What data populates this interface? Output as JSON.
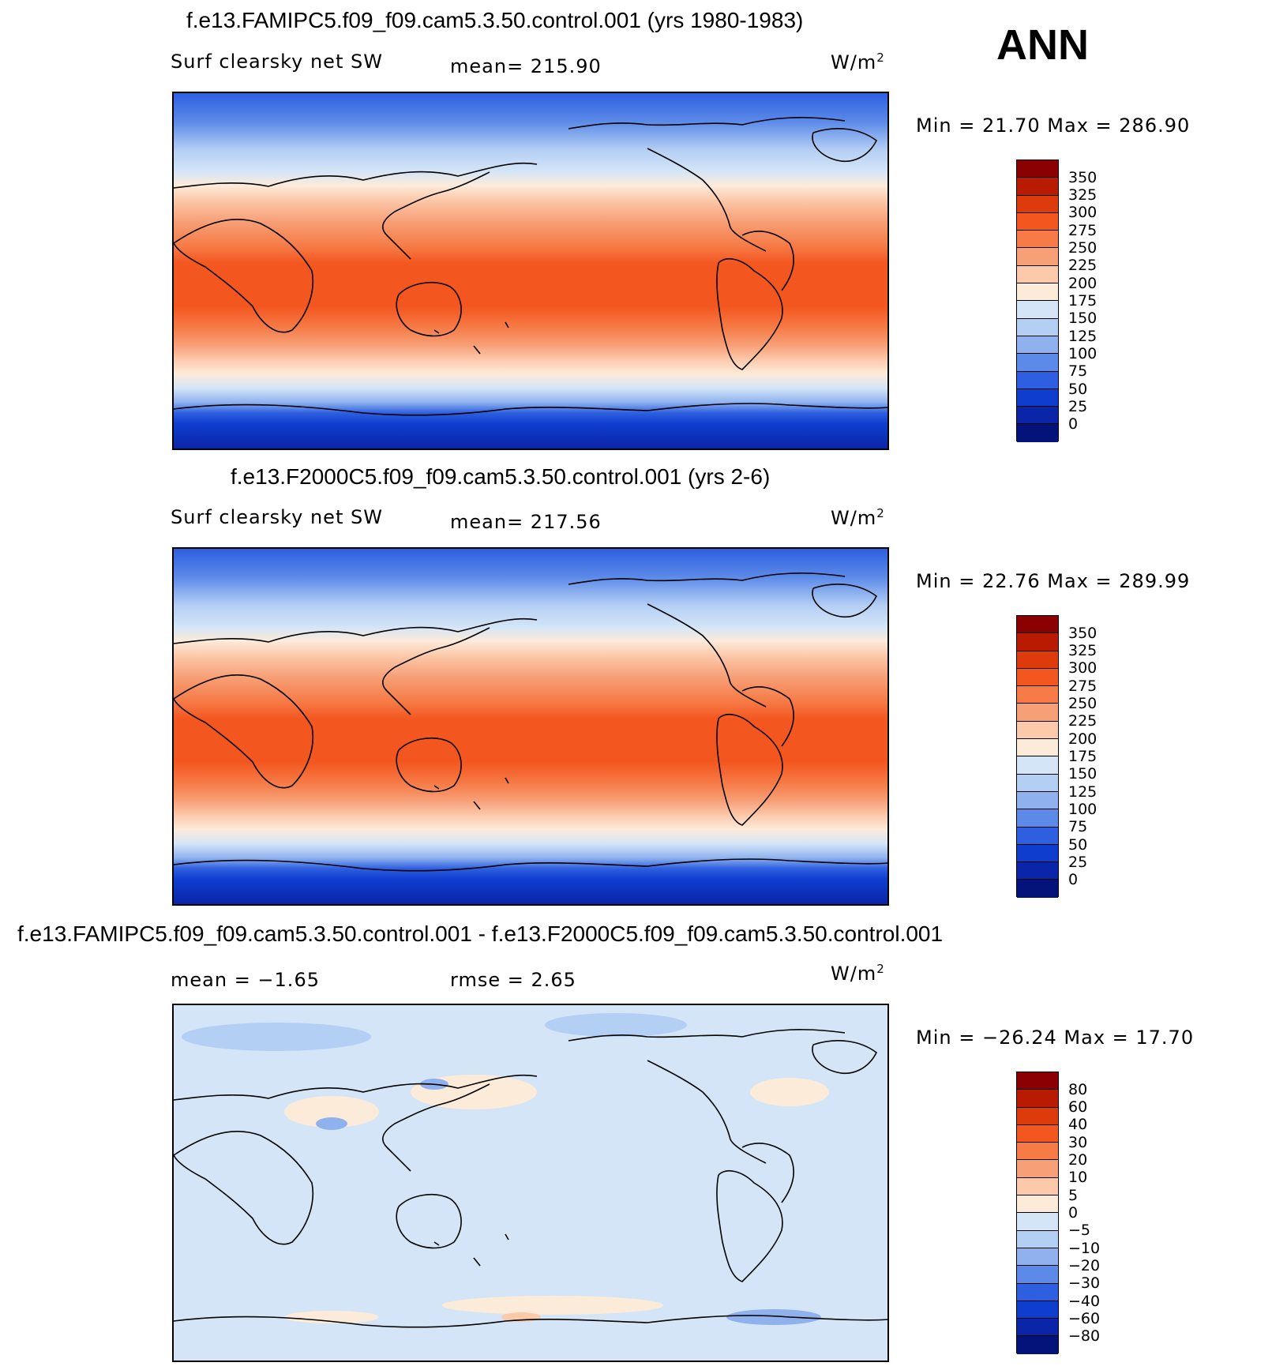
{
  "season": "ANN",
  "panels": [
    {
      "title": "f.e13.FAMIPC5.f09_f09.cam5.3.50.control.001 (yrs 1980-1983)",
      "left_label": "Surf clearsky net SW",
      "center_label": "mean= 215.90",
      "units": "W/m",
      "units_exp": "2",
      "minmax": "Min =   21.70 Max = 286.90"
    },
    {
      "title": "f.e13.F2000C5.f09_f09.cam5.3.50.control.001 (yrs 2-6)",
      "left_label": "Surf clearsky net SW",
      "center_label": "mean= 217.56",
      "units": "W/m",
      "units_exp": "2",
      "minmax": "Min =   22.76 Max = 289.99"
    },
    {
      "title": "f.e13.FAMIPC5.f09_f09.cam5.3.50.control.001 - f.e13.F2000C5.f09_f09.cam5.3.50.control.001",
      "left_label": "mean =   −1.65",
      "center_label": "rmse =    2.65",
      "units": "W/m",
      "units_exp": "2",
      "minmax": "Min = −26.24 Max =   17.70"
    }
  ],
  "colorbars": {
    "abs": {
      "labels": [
        "350",
        "325",
        "300",
        "275",
        "250",
        "225",
        "200",
        "175",
        "150",
        "125",
        "100",
        "75",
        "50",
        "25",
        "0"
      ],
      "colors": [
        "#8b0000",
        "#b81b00",
        "#de3b0c",
        "#f4561f",
        "#f67b47",
        "#f7a077",
        "#fcc9ab",
        "#fdebd9",
        "#d3e5f7",
        "#b4cff4",
        "#8fb2ef",
        "#5c8ae8",
        "#2e5fe0",
        "#0f3ecf",
        "#0b25a8",
        "#04137a"
      ]
    },
    "diff": {
      "labels": [
        "80",
        "60",
        "40",
        "30",
        "20",
        "10",
        "5",
        "0",
        "−5",
        "−10",
        "−20",
        "−30",
        "−40",
        "−60",
        "−80"
      ],
      "colors": [
        "#8b0000",
        "#b81b00",
        "#de3b0c",
        "#f4561f",
        "#f67b47",
        "#f7a077",
        "#fcc9ab",
        "#fdebd9",
        "#d3e5f7",
        "#b4cff4",
        "#8fb2ef",
        "#5c8ae8",
        "#2e5fe0",
        "#0f3ecf",
        "#0b25a8",
        "#04137a"
      ]
    }
  },
  "chart_data": [
    {
      "type": "heatmap",
      "title": "f.e13.FAMIPC5.f09_f09.cam5.3.50.control.001 (yrs 1980-1983)",
      "variable": "Surf clearsky net SW",
      "units": "W/m2",
      "mean": 215.9,
      "min": 21.7,
      "max": 286.9,
      "levels": [
        0,
        25,
        50,
        75,
        100,
        125,
        150,
        175,
        200,
        225,
        250,
        275,
        300,
        325,
        350
      ],
      "zonal_band_latitudes": [
        90,
        80,
        70,
        60,
        50,
        40,
        30,
        20,
        10,
        0,
        -10,
        -20,
        -30,
        -40,
        -50,
        -60,
        -70,
        -80,
        -90
      ],
      "zonal_band_values": [
        40,
        70,
        110,
        150,
        185,
        215,
        240,
        262,
        270,
        275,
        270,
        262,
        240,
        210,
        170,
        110,
        60,
        35,
        25
      ]
    },
    {
      "type": "heatmap",
      "title": "f.e13.F2000C5.f09_f09.cam5.3.50.control.001 (yrs 2-6)",
      "variable": "Surf clearsky net SW",
      "units": "W/m2",
      "mean": 217.56,
      "min": 22.76,
      "max": 289.99,
      "levels": [
        0,
        25,
        50,
        75,
        100,
        125,
        150,
        175,
        200,
        225,
        250,
        275,
        300,
        325,
        350
      ],
      "zonal_band_latitudes": [
        90,
        80,
        70,
        60,
        50,
        40,
        30,
        20,
        10,
        0,
        -10,
        -20,
        -30,
        -40,
        -50,
        -60,
        -70,
        -80,
        -90
      ],
      "zonal_band_values": [
        40,
        70,
        110,
        150,
        188,
        218,
        242,
        265,
        272,
        278,
        272,
        264,
        242,
        212,
        172,
        112,
        62,
        36,
        26
      ]
    },
    {
      "type": "heatmap",
      "title": "f.e13.FAMIPC5.f09_f09.cam5.3.50.control.001 - f.e13.F2000C5.f09_f09.cam5.3.50.control.001",
      "units": "W/m2",
      "mean": -1.65,
      "rmse": 2.65,
      "min": -26.24,
      "max": 17.7,
      "levels": [
        -80,
        -60,
        -40,
        -30,
        -20,
        -10,
        -5,
        0,
        5,
        10,
        20,
        30,
        40,
        60,
        80
      ],
      "zonal_band_latitudes": [
        90,
        80,
        70,
        60,
        50,
        40,
        30,
        20,
        10,
        0,
        -10,
        -20,
        -30,
        -40,
        -50,
        -60,
        -70,
        -80,
        -90
      ],
      "zonal_band_values": [
        -8,
        -4,
        -2,
        -1,
        -1,
        -1,
        -2,
        -2,
        -2,
        -2,
        -2,
        -2,
        -2,
        -2,
        -1,
        -2,
        -3,
        1,
        -2
      ]
    }
  ]
}
